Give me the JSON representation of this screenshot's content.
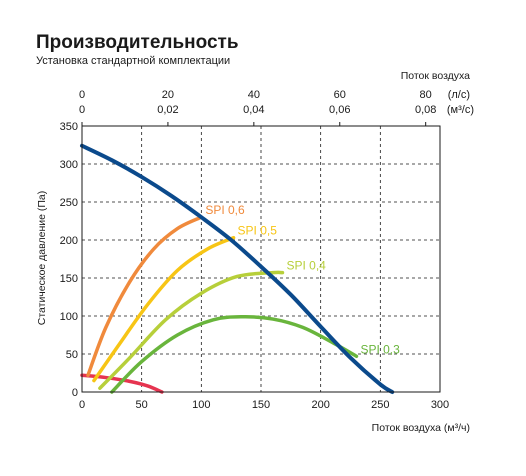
{
  "chart_data": {
    "type": "line",
    "title": "Производительность",
    "subtitle": "Установка стандартной комплектации",
    "xlabel": "Поток воздуха (м³/ч)",
    "ylabel": "Статическое давление (Па)",
    "top_axis_title": "Поток воздуха",
    "top_axis_unit_ls": "(л/с)",
    "top_axis_unit_m3s": "(м³/с)",
    "xlim": [
      0,
      300
    ],
    "ylim": [
      0,
      350
    ],
    "x_ticks": [
      "0",
      "50",
      "100",
      "150",
      "200",
      "250",
      "300"
    ],
    "y_ticks": [
      "0",
      "50",
      "100",
      "150",
      "200",
      "250",
      "300",
      "350"
    ],
    "top_ticks_ls": [
      "0",
      "20",
      "40",
      "60",
      "80"
    ],
    "top_ticks_m3s": [
      "0",
      "0,02",
      "0,04",
      "0,06",
      "0,08"
    ],
    "series": [
      {
        "name": "",
        "color": "#0b4a8c",
        "x": [
          0,
          25,
          50,
          75,
          100,
          125,
          150,
          175,
          200,
          225,
          250,
          260
        ],
        "y": [
          324,
          305,
          283,
          258,
          230,
          200,
          165,
          128,
          86,
          45,
          10,
          0
        ]
      },
      {
        "name": "SPI 0,6",
        "color": "#f08a3c",
        "x": [
          5,
          20,
          40,
          60,
          80,
          100
        ],
        "y": [
          22,
          85,
          145,
          188,
          215,
          230
        ]
      },
      {
        "name": "SPI 0,5",
        "color": "#f7c515",
        "x": [
          10,
          30,
          55,
          80,
          105,
          127
        ],
        "y": [
          15,
          60,
          115,
          160,
          188,
          203
        ]
      },
      {
        "name": "SPI 0,4",
        "color": "#b7cf3a",
        "x": [
          15,
          40,
          70,
          100,
          130,
          160,
          168
        ],
        "y": [
          5,
          45,
          95,
          130,
          152,
          157,
          157
        ]
      },
      {
        "name": "SPI 0,3",
        "color": "#69b53c",
        "x": [
          25,
          50,
          80,
          110,
          135,
          160,
          185,
          210,
          230
        ],
        "y": [
          0,
          40,
          75,
          95,
          99,
          96,
          85,
          65,
          47
        ]
      },
      {
        "name": "",
        "color": "#e63450",
        "x": [
          0,
          20,
          40,
          55,
          67
        ],
        "y": [
          22,
          19,
          14,
          8,
          0
        ]
      }
    ],
    "annotations": [
      {
        "text": "SPI 0,6",
        "series": 1
      },
      {
        "text": "SPI 0,5",
        "series": 2
      },
      {
        "text": "SPI 0,4",
        "series": 3
      },
      {
        "text": "SPI 0,3",
        "series": 4
      }
    ]
  }
}
